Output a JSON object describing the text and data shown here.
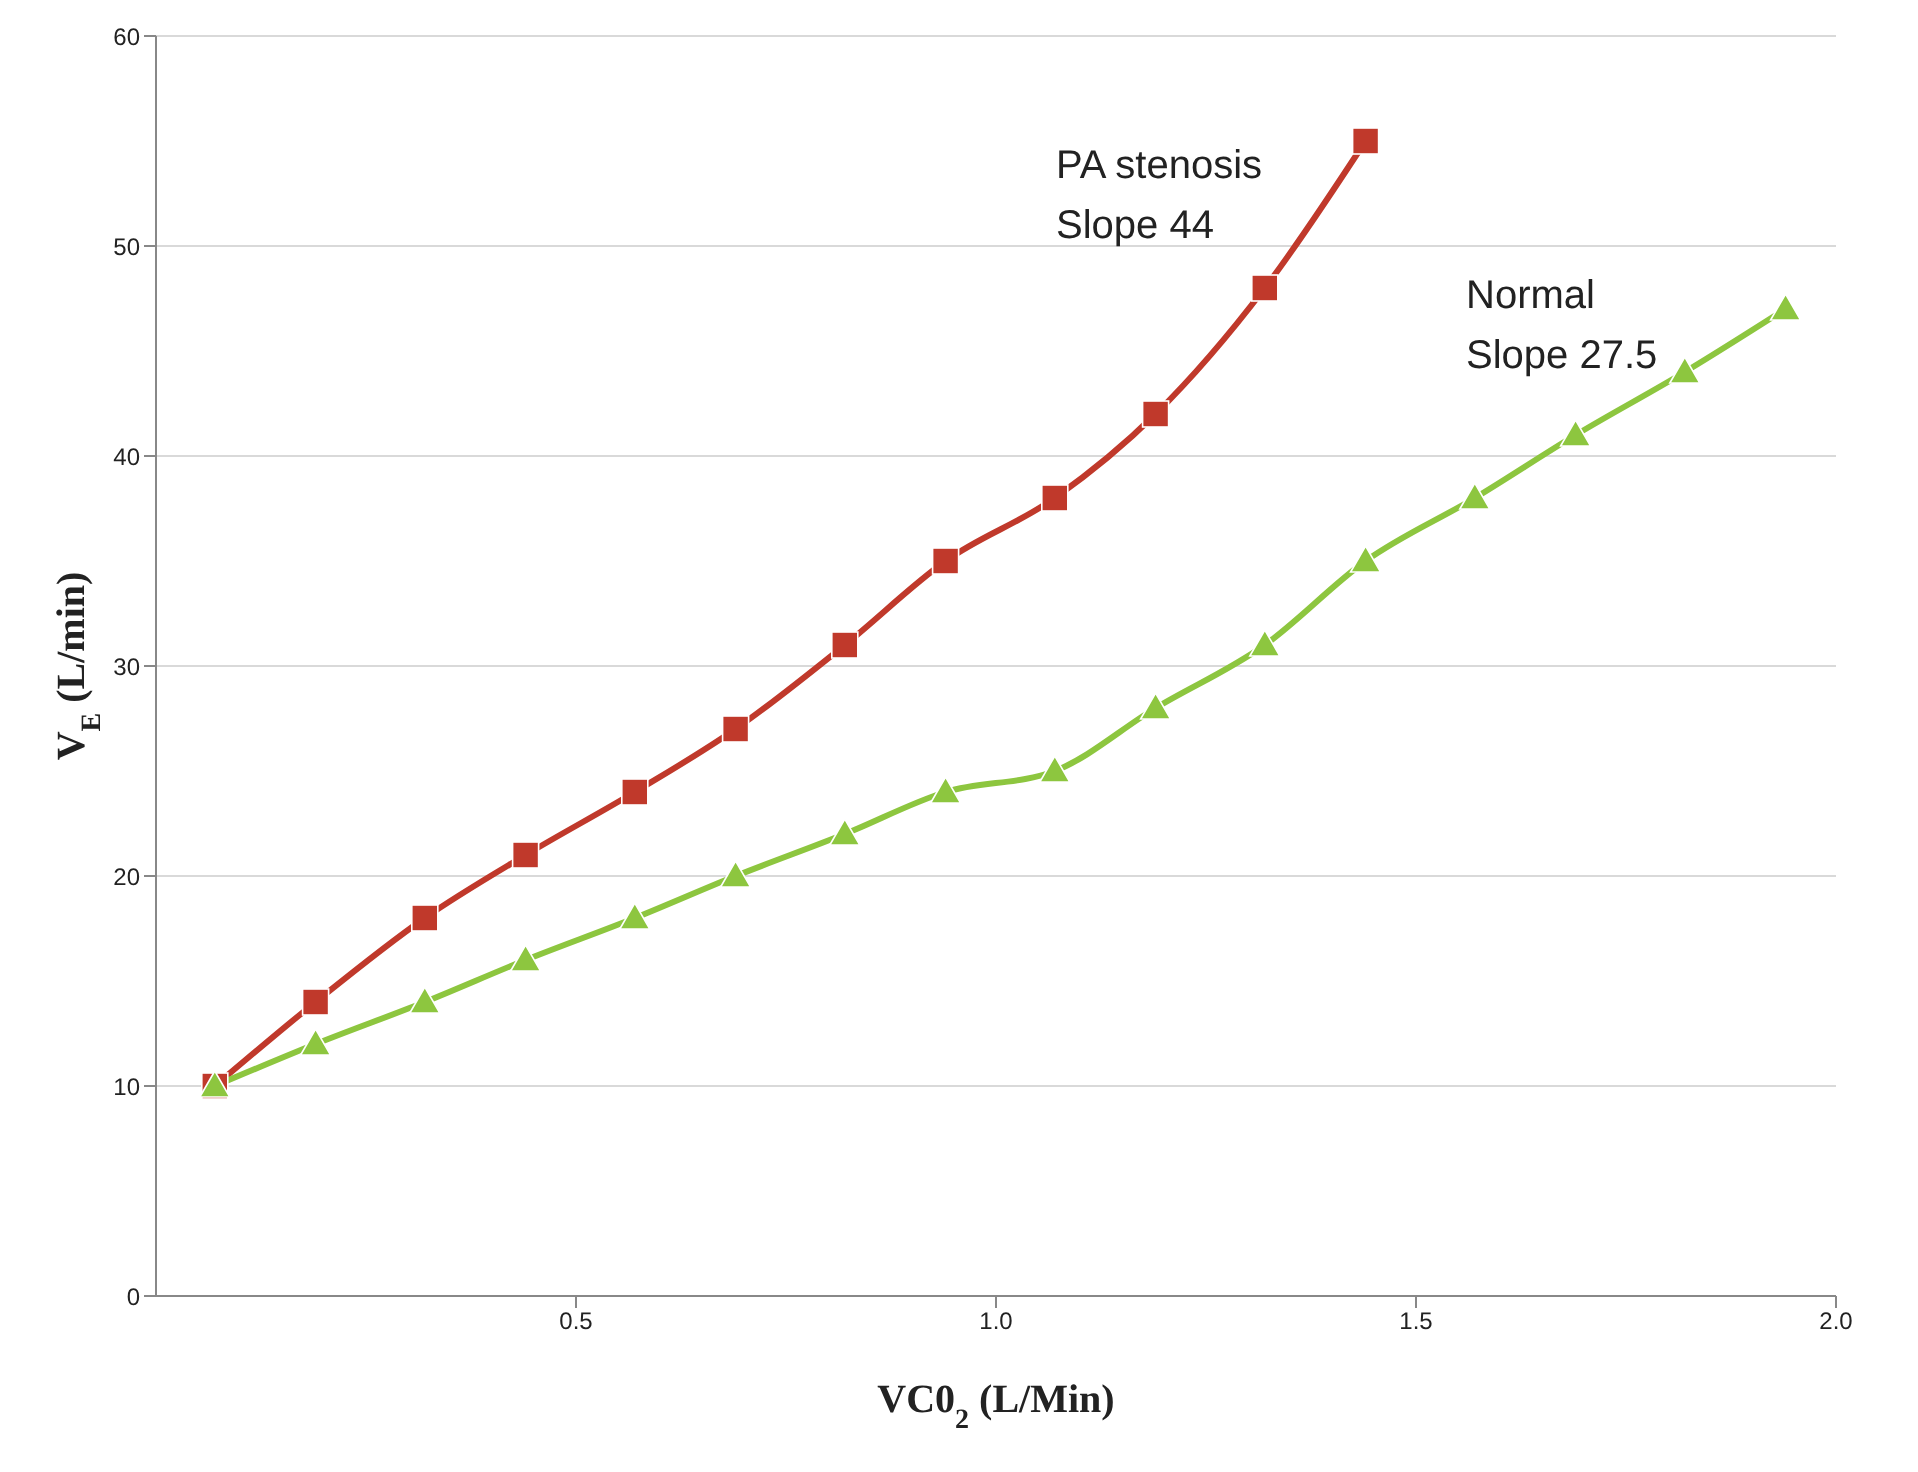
{
  "chart_data": {
    "type": "line",
    "xlabel": "VC0$_{2}$ (L/Min)",
    "ylabel": "V$_{E}$ (L/min)",
    "xlim": [
      0,
      2.0
    ],
    "xticks": [
      {
        "value": 0.5,
        "label": "0.5"
      },
      {
        "value": 1.0,
        "label": "1.0"
      },
      {
        "value": 1.5,
        "label": "1.5"
      },
      {
        "value": 2.0,
        "label": "2.0"
      }
    ],
    "ylim": [
      0,
      60
    ],
    "yticks": [
      0,
      10,
      20,
      30,
      40,
      50,
      60
    ],
    "grid": "y",
    "line_style": "solid",
    "series": [
      {
        "color": "#c0392b",
        "marker": "square",
        "x": [
          0.07,
          0.19,
          0.32,
          0.44,
          0.57,
          0.69,
          0.82,
          0.94,
          1.07,
          1.19,
          1.32,
          1.44
        ],
        "values": [
          10,
          14,
          18,
          21,
          24,
          27,
          31,
          35,
          38,
          42,
          48,
          55
        ]
      },
      {
        "color": "#8dc63f",
        "marker": "triangle",
        "x": [
          0.07,
          0.19,
          0.32,
          0.44,
          0.57,
          0.69,
          0.82,
          0.94,
          1.07,
          1.19,
          1.32,
          1.44,
          1.57,
          1.69,
          1.82,
          1.94
        ],
        "values": [
          10,
          12,
          14,
          16,
          18,
          20,
          22,
          24,
          25,
          28,
          31,
          35,
          38,
          41,
          44,
          47
        ]
      }
    ],
    "annotations": [
      "PA stenosis\nSlope 44",
      "Normal\nSlope 27.5"
    ]
  }
}
